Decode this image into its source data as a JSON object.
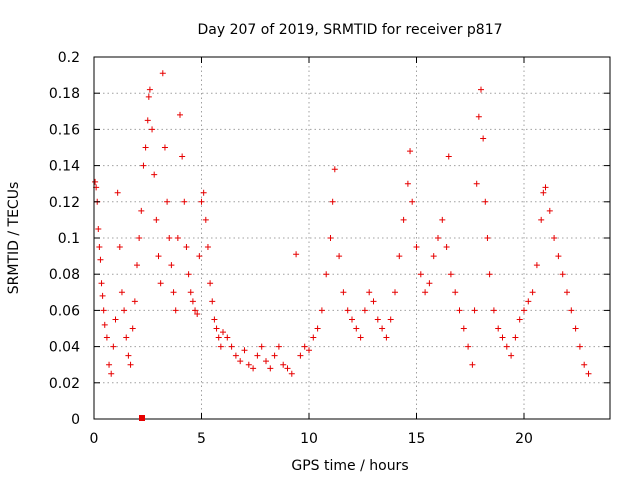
{
  "chart_data": {
    "type": "scatter",
    "title": "Day 207 of 2019, SRMTID for receiver p817",
    "xlabel": "GPS time / hours",
    "ylabel": "SRMTID / TECUs",
    "xlim": [
      0,
      24
    ],
    "ylim": [
      0,
      0.2
    ],
    "x_ticks": [
      "0",
      "5",
      "10",
      "15",
      "20"
    ],
    "y_ticks": [
      "0",
      "0.02",
      "0.04",
      "0.06",
      "0.08",
      "0.1",
      "0.12",
      "0.14",
      "0.16",
      "0.18",
      "0.2"
    ],
    "grid": true,
    "marker": "+",
    "color": "#e60000",
    "series": [
      {
        "name": "p817",
        "points": [
          [
            0.05,
            0.131
          ],
          [
            0.1,
            0.128
          ],
          [
            0.15,
            0.12
          ],
          [
            0.2,
            0.105
          ],
          [
            0.25,
            0.095
          ],
          [
            0.3,
            0.088
          ],
          [
            0.35,
            0.075
          ],
          [
            0.4,
            0.068
          ],
          [
            0.45,
            0.06
          ],
          [
            0.5,
            0.052
          ],
          [
            0.6,
            0.045
          ],
          [
            0.7,
            0.03
          ],
          [
            0.8,
            0.025
          ],
          [
            0.9,
            0.04
          ],
          [
            1.0,
            0.055
          ],
          [
            1.1,
            0.125
          ],
          [
            1.2,
            0.095
          ],
          [
            1.3,
            0.07
          ],
          [
            1.4,
            0.06
          ],
          [
            1.5,
            0.045
          ],
          [
            1.6,
            0.035
          ],
          [
            1.7,
            0.03
          ],
          [
            1.8,
            0.05
          ],
          [
            1.9,
            0.065
          ],
          [
            2.0,
            0.085
          ],
          [
            2.1,
            0.1
          ],
          [
            2.2,
            0.115
          ],
          [
            2.3,
            0.14
          ],
          [
            2.4,
            0.15
          ],
          [
            2.5,
            0.165
          ],
          [
            2.55,
            0.178
          ],
          [
            2.6,
            0.182
          ],
          [
            2.7,
            0.16
          ],
          [
            2.8,
            0.135
          ],
          [
            2.9,
            0.11
          ],
          [
            3.0,
            0.09
          ],
          [
            3.1,
            0.075
          ],
          [
            3.2,
            0.191
          ],
          [
            3.3,
            0.15
          ],
          [
            3.4,
            0.12
          ],
          [
            3.5,
            0.1
          ],
          [
            3.6,
            0.085
          ],
          [
            3.7,
            0.07
          ],
          [
            3.8,
            0.06
          ],
          [
            3.9,
            0.1
          ],
          [
            4.0,
            0.168
          ],
          [
            4.1,
            0.145
          ],
          [
            4.2,
            0.12
          ],
          [
            4.3,
            0.095
          ],
          [
            4.4,
            0.08
          ],
          [
            4.5,
            0.07
          ],
          [
            4.6,
            0.065
          ],
          [
            4.7,
            0.06
          ],
          [
            4.8,
            0.058
          ],
          [
            4.9,
            0.09
          ],
          [
            5.0,
            0.12
          ],
          [
            5.1,
            0.125
          ],
          [
            5.2,
            0.11
          ],
          [
            5.3,
            0.095
          ],
          [
            5.4,
            0.075
          ],
          [
            5.5,
            0.065
          ],
          [
            5.6,
            0.055
          ],
          [
            5.7,
            0.05
          ],
          [
            5.8,
            0.045
          ],
          [
            5.9,
            0.04
          ],
          [
            6.0,
            0.048
          ],
          [
            6.2,
            0.045
          ],
          [
            6.4,
            0.04
          ],
          [
            6.6,
            0.035
          ],
          [
            6.8,
            0.032
          ],
          [
            7.0,
            0.038
          ],
          [
            7.2,
            0.03
          ],
          [
            7.4,
            0.028
          ],
          [
            7.6,
            0.035
          ],
          [
            7.8,
            0.04
          ],
          [
            8.0,
            0.032
          ],
          [
            8.2,
            0.028
          ],
          [
            8.4,
            0.035
          ],
          [
            8.6,
            0.04
          ],
          [
            8.8,
            0.03
          ],
          [
            9.0,
            0.028
          ],
          [
            9.2,
            0.025
          ],
          [
            9.4,
            0.091
          ],
          [
            9.6,
            0.035
          ],
          [
            9.8,
            0.04
          ],
          [
            10.0,
            0.038
          ],
          [
            10.2,
            0.045
          ],
          [
            10.4,
            0.05
          ],
          [
            10.6,
            0.06
          ],
          [
            10.8,
            0.08
          ],
          [
            11.0,
            0.1
          ],
          [
            11.1,
            0.12
          ],
          [
            11.2,
            0.138
          ],
          [
            11.4,
            0.09
          ],
          [
            11.6,
            0.07
          ],
          [
            11.8,
            0.06
          ],
          [
            12.0,
            0.055
          ],
          [
            12.2,
            0.05
          ],
          [
            12.4,
            0.045
          ],
          [
            12.6,
            0.06
          ],
          [
            12.8,
            0.07
          ],
          [
            13.0,
            0.065
          ],
          [
            13.2,
            0.055
          ],
          [
            13.4,
            0.05
          ],
          [
            13.6,
            0.045
          ],
          [
            13.8,
            0.055
          ],
          [
            14.0,
            0.07
          ],
          [
            14.2,
            0.09
          ],
          [
            14.4,
            0.11
          ],
          [
            14.6,
            0.13
          ],
          [
            14.7,
            0.148
          ],
          [
            14.8,
            0.12
          ],
          [
            15.0,
            0.095
          ],
          [
            15.2,
            0.08
          ],
          [
            15.4,
            0.07
          ],
          [
            15.6,
            0.075
          ],
          [
            15.8,
            0.09
          ],
          [
            16.0,
            0.1
          ],
          [
            16.2,
            0.11
          ],
          [
            16.4,
            0.095
          ],
          [
            16.5,
            0.145
          ],
          [
            16.6,
            0.08
          ],
          [
            16.8,
            0.07
          ],
          [
            17.0,
            0.06
          ],
          [
            17.2,
            0.05
          ],
          [
            17.4,
            0.04
          ],
          [
            17.6,
            0.03
          ],
          [
            17.7,
            0.06
          ],
          [
            17.8,
            0.13
          ],
          [
            17.9,
            0.167
          ],
          [
            18.0,
            0.182
          ],
          [
            18.1,
            0.155
          ],
          [
            18.2,
            0.12
          ],
          [
            18.3,
            0.1
          ],
          [
            18.4,
            0.08
          ],
          [
            18.6,
            0.06
          ],
          [
            18.8,
            0.05
          ],
          [
            19.0,
            0.045
          ],
          [
            19.2,
            0.04
          ],
          [
            19.4,
            0.035
          ],
          [
            19.6,
            0.045
          ],
          [
            19.8,
            0.055
          ],
          [
            20.0,
            0.06
          ],
          [
            20.2,
            0.065
          ],
          [
            20.4,
            0.07
          ],
          [
            20.6,
            0.085
          ],
          [
            20.8,
            0.11
          ],
          [
            20.9,
            0.125
          ],
          [
            21.0,
            0.128
          ],
          [
            21.2,
            0.115
          ],
          [
            21.4,
            0.1
          ],
          [
            21.6,
            0.09
          ],
          [
            21.8,
            0.08
          ],
          [
            22.0,
            0.07
          ],
          [
            22.2,
            0.06
          ],
          [
            22.4,
            0.05
          ],
          [
            22.6,
            0.04
          ],
          [
            22.8,
            0.03
          ],
          [
            23.0,
            0.025
          ]
        ]
      }
    ]
  }
}
